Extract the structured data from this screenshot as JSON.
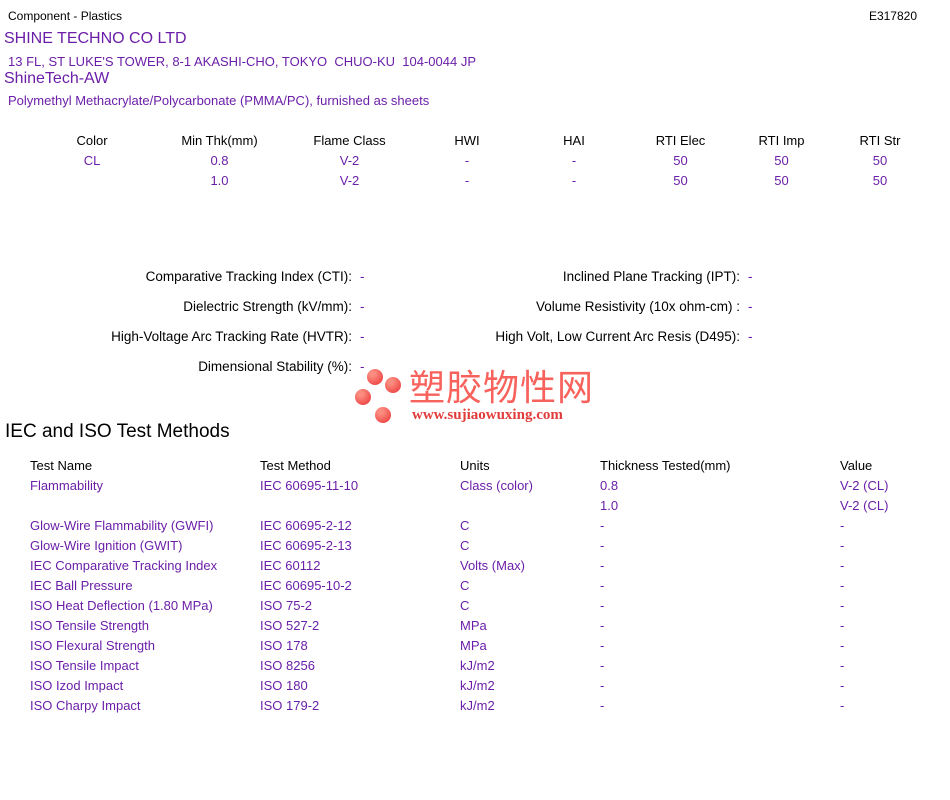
{
  "page": {
    "doc_type": "Component - Plastics",
    "file_number": "E317820"
  },
  "company": {
    "name": "SHINE TECHNO CO LTD",
    "address": "13 FL, ST LUKE'S TOWER, 8-1 AKASHI-CHO, TOKYO  CHUO-KU  104-0044 JP"
  },
  "product": {
    "name": "ShineTech-AW",
    "description": "Polymethyl Methacrylate/Polycarbonate (PMMA/PC), furnished as sheets"
  },
  "ratings_table": {
    "headers": [
      "Color",
      "Min Thk(mm)",
      "Flame Class",
      "HWI",
      "HAI",
      "RTI Elec",
      "RTI Imp",
      "RTI Str"
    ],
    "rows": [
      [
        "CL",
        "0.8",
        "V-2",
        "-",
        "-",
        "50",
        "50",
        "50"
      ],
      [
        "",
        "1.0",
        "V-2",
        "-",
        "-",
        "50",
        "50",
        "50"
      ]
    ]
  },
  "properties": {
    "left": [
      {
        "label": "Comparative Tracking Index (CTI):",
        "value": "-"
      },
      {
        "label": "Dielectric Strength (kV/mm):",
        "value": "-"
      },
      {
        "label": "High-Voltage Arc Tracking Rate (HVTR):",
        "value": "-"
      },
      {
        "label": "Dimensional Stability (%):",
        "value": "-"
      }
    ],
    "right": [
      {
        "label": "Inclined Plane Tracking (IPT):",
        "value": "-"
      },
      {
        "label": "Volume Resistivity (10x ohm-cm) :",
        "value": "-"
      },
      {
        "label": "High Volt, Low Current Arc Resis (D495):",
        "value": "-"
      }
    ]
  },
  "logo": {
    "cn_text": "塑胶物性网",
    "url": "www.sujiaowuxing.com",
    "dot_color": "#F15B57",
    "cn_color": "#F8625C",
    "url_color": "#E23B3B"
  },
  "test_methods": {
    "title": "IEC and ISO Test Methods",
    "headers": [
      "Test Name",
      "Test Method",
      "Units",
      "Thickness Tested(mm)",
      "Value"
    ],
    "rows": [
      [
        "Flammability",
        "IEC 60695-11-10",
        "Class (color)",
        "0.8",
        "V-2 (CL)"
      ],
      [
        "",
        "",
        "",
        "1.0",
        "V-2 (CL)"
      ],
      [
        "Glow-Wire Flammability (GWFI)",
        "IEC 60695-2-12",
        "C",
        "-",
        "-"
      ],
      [
        "Glow-Wire Ignition (GWIT)",
        "IEC 60695-2-13",
        "C",
        "-",
        "-"
      ],
      [
        "IEC Comparative Tracking Index",
        "IEC 60112",
        "Volts (Max)",
        "-",
        "-"
      ],
      [
        "IEC Ball Pressure",
        "IEC 60695-10-2",
        "C",
        "-",
        "-"
      ],
      [
        "ISO Heat Deflection (1.80 MPa)",
        "ISO 75-2",
        "C",
        "-",
        "-"
      ],
      [
        "ISO Tensile Strength",
        "ISO 527-2",
        "MPa",
        "-",
        "-"
      ],
      [
        "ISO Flexural Strength",
        "ISO 178",
        "MPa",
        "-",
        "-"
      ],
      [
        "ISO Tensile Impact",
        "ISO 8256",
        "kJ/m2",
        "-",
        "-"
      ],
      [
        "ISO Izod Impact",
        "ISO 180",
        "kJ/m2",
        "-",
        "-"
      ],
      [
        "ISO Charpy Impact",
        "ISO 179-2",
        "kJ/m2",
        "-",
        "-"
      ]
    ]
  },
  "colors": {
    "accent_purple": "#6B1FA8",
    "text_black": "#000000"
  }
}
